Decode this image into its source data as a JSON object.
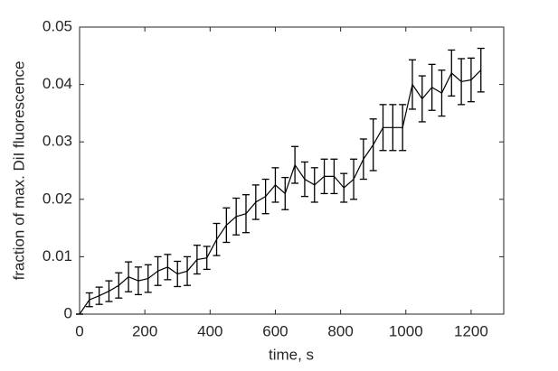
{
  "chart_data": {
    "type": "line",
    "xlabel": "time, s",
    "ylabel": "fraction of max. DiI fluorescence",
    "x": [
      0,
      30,
      60,
      90,
      120,
      150,
      180,
      210,
      240,
      270,
      300,
      330,
      360,
      390,
      420,
      450,
      480,
      510,
      540,
      570,
      600,
      630,
      660,
      690,
      720,
      750,
      780,
      810,
      840,
      870,
      900,
      930,
      960,
      990,
      1020,
      1050,
      1080,
      1110,
      1140,
      1170,
      1200,
      1230
    ],
    "values": [
      0,
      0.0025,
      0.0032,
      0.004,
      0.005,
      0.0065,
      0.0058,
      0.0062,
      0.0075,
      0.0082,
      0.007,
      0.0075,
      0.0095,
      0.0098,
      0.013,
      0.0155,
      0.017,
      0.0175,
      0.0195,
      0.0205,
      0.0225,
      0.021,
      0.026,
      0.0235,
      0.0225,
      0.024,
      0.024,
      0.022,
      0.0235,
      0.027,
      0.0295,
      0.0325,
      0.0325,
      0.0325,
      0.04,
      0.0375,
      0.0395,
      0.0385,
      0.042,
      0.0405,
      0.0408,
      0.0425
    ],
    "errors": [
      0,
      0.0012,
      0.0015,
      0.0018,
      0.0022,
      0.0026,
      0.0024,
      0.0024,
      0.0025,
      0.0022,
      0.0022,
      0.0025,
      0.0025,
      0.002,
      0.0028,
      0.003,
      0.0032,
      0.0033,
      0.003,
      0.003,
      0.003,
      0.0028,
      0.0032,
      0.003,
      0.003,
      0.003,
      0.003,
      0.0025,
      0.0035,
      0.0035,
      0.0045,
      0.004,
      0.004,
      0.004,
      0.0043,
      0.004,
      0.004,
      0.004,
      0.004,
      0.004,
      0.0038,
      0.0038
    ],
    "color": "#000000",
    "xlim": [
      0,
      1300
    ],
    "xticks": [
      0,
      200,
      400,
      600,
      800,
      1000,
      1200
    ],
    "ylim": [
      0,
      0.05
    ],
    "yticks": [
      0,
      0.01,
      0.02,
      0.03,
      0.04,
      0.05
    ]
  }
}
